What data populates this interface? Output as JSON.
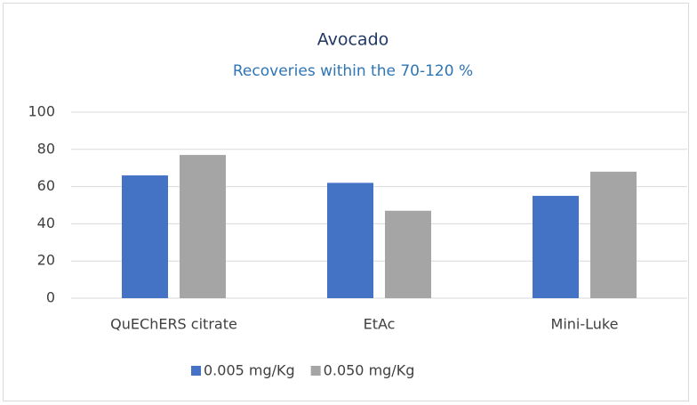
{
  "chart_data": {
    "type": "bar",
    "title": "Avocado",
    "subtitle": "Recoveries within the 70-120 %",
    "categories": [
      "QuEChERS citrate",
      "EtAc",
      "Mini-Luke"
    ],
    "series": [
      {
        "name": "0.005 mg/Kg",
        "color": "#4472c4",
        "values": [
          66,
          62,
          55
        ]
      },
      {
        "name": "0.050 mg/Kg",
        "color": "#a5a5a5",
        "values": [
          77,
          47,
          68
        ]
      }
    ],
    "ylim": [
      0,
      100
    ],
    "yticks": [
      0,
      20,
      40,
      60,
      80,
      100
    ],
    "grid": true,
    "legend": "bottom"
  }
}
